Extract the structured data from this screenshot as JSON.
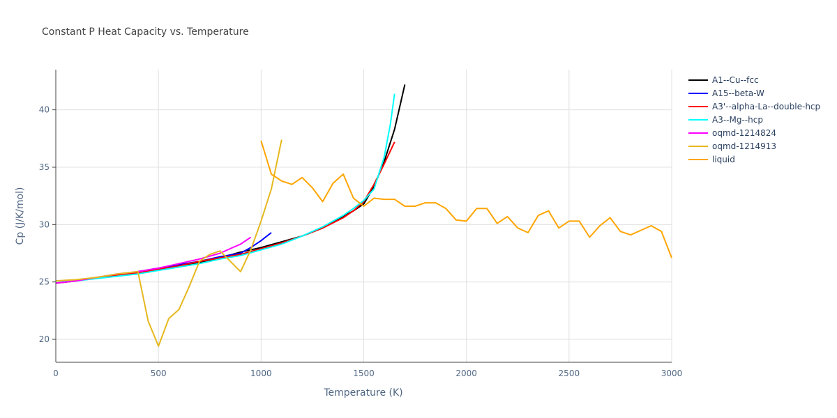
{
  "chart_data": {
    "type": "line",
    "title": "Constant P Heat Capacity vs. Temperature",
    "xlabel": "Temperature (K)",
    "ylabel": "Cp (J/K/mol)",
    "xlim": [
      0,
      3000
    ],
    "ylim": [
      18,
      43.5
    ],
    "x_ticks": [
      0,
      500,
      1000,
      1500,
      2000,
      2500,
      3000
    ],
    "x_tick_labels": [
      "0",
      "500",
      "1000",
      "1500",
      "2000",
      "2500",
      "3000"
    ],
    "y_ticks": [
      20,
      25,
      30,
      35,
      40
    ],
    "y_tick_labels": [
      "20",
      "25",
      "30",
      "35",
      "40"
    ],
    "grid": true,
    "legend_position": "top-right",
    "series": [
      {
        "name": "A1--Cu--fcc",
        "color": "#000000",
        "points": [
          [
            0,
            24.9
          ],
          [
            100,
            25.1
          ],
          [
            200,
            25.4
          ],
          [
            300,
            25.6
          ],
          [
            400,
            25.9
          ],
          [
            500,
            26.1
          ],
          [
            600,
            26.4
          ],
          [
            700,
            26.7
          ],
          [
            800,
            27.1
          ],
          [
            900,
            27.6
          ],
          [
            1000,
            28.0
          ],
          [
            1100,
            28.5
          ],
          [
            1200,
            29.0
          ],
          [
            1300,
            29.7
          ],
          [
            1400,
            30.7
          ],
          [
            1450,
            31.2
          ],
          [
            1500,
            31.8
          ],
          [
            1550,
            33.3
          ],
          [
            1600,
            35.5
          ],
          [
            1650,
            38.3
          ],
          [
            1700,
            42.2
          ]
        ]
      },
      {
        "name": "A15--beta-W",
        "color": "#0000ff",
        "points": [
          [
            0,
            24.9
          ],
          [
            100,
            25.1
          ],
          [
            200,
            25.4
          ],
          [
            300,
            25.6
          ],
          [
            400,
            25.9
          ],
          [
            500,
            26.2
          ],
          [
            600,
            26.5
          ],
          [
            700,
            26.8
          ],
          [
            800,
            27.2
          ],
          [
            900,
            27.5
          ],
          [
            950,
            28.0
          ],
          [
            1000,
            28.6
          ],
          [
            1050,
            29.3
          ]
        ]
      },
      {
        "name": "A3'--alpha-La--double-hcp",
        "color": "#ff0000",
        "points": [
          [
            0,
            24.9
          ],
          [
            100,
            25.1
          ],
          [
            200,
            25.4
          ],
          [
            300,
            25.6
          ],
          [
            400,
            25.8
          ],
          [
            500,
            26.1
          ],
          [
            600,
            26.4
          ],
          [
            700,
            26.8
          ],
          [
            800,
            27.1
          ],
          [
            900,
            27.4
          ],
          [
            1000,
            27.9
          ],
          [
            1100,
            28.4
          ],
          [
            1200,
            29.0
          ],
          [
            1300,
            29.7
          ],
          [
            1400,
            30.6
          ],
          [
            1450,
            31.2
          ],
          [
            1500,
            32.0
          ],
          [
            1550,
            33.5
          ],
          [
            1600,
            35.3
          ],
          [
            1650,
            37.2
          ]
        ]
      },
      {
        "name": "A3--Mg--hcp",
        "color": "#00ffff",
        "points": [
          [
            0,
            25.1
          ],
          [
            100,
            25.1
          ],
          [
            200,
            25.3
          ],
          [
            300,
            25.5
          ],
          [
            400,
            25.7
          ],
          [
            500,
            26.0
          ],
          [
            600,
            26.3
          ],
          [
            700,
            26.6
          ],
          [
            800,
            27.0
          ],
          [
            900,
            27.3
          ],
          [
            1000,
            27.8
          ],
          [
            1100,
            28.3
          ],
          [
            1200,
            29.0
          ],
          [
            1300,
            29.8
          ],
          [
            1400,
            30.8
          ],
          [
            1450,
            31.4
          ],
          [
            1500,
            32.1
          ],
          [
            1550,
            33.1
          ],
          [
            1600,
            35.9
          ],
          [
            1630,
            38.8
          ],
          [
            1650,
            41.4
          ]
        ]
      },
      {
        "name": "oqmd-1214824",
        "color": "#ff00ff",
        "points": [
          [
            0,
            24.9
          ],
          [
            100,
            25.1
          ],
          [
            200,
            25.4
          ],
          [
            300,
            25.7
          ],
          [
            400,
            25.9
          ],
          [
            500,
            26.2
          ],
          [
            600,
            26.6
          ],
          [
            700,
            27.0
          ],
          [
            800,
            27.5
          ],
          [
            850,
            27.9
          ],
          [
            900,
            28.3
          ],
          [
            950,
            28.9
          ]
        ]
      },
      {
        "name": "oqmd-1214913",
        "color": "#e6b81e",
        "points": [
          [
            0,
            25.1
          ],
          [
            100,
            25.2
          ],
          [
            200,
            25.4
          ],
          [
            300,
            25.7
          ],
          [
            350,
            25.8
          ],
          [
            400,
            25.9
          ],
          [
            450,
            21.6
          ],
          [
            500,
            19.4
          ],
          [
            550,
            21.8
          ],
          [
            600,
            22.6
          ],
          [
            650,
            24.6
          ],
          [
            700,
            26.8
          ],
          [
            750,
            27.4
          ],
          [
            800,
            27.7
          ],
          [
            850,
            26.8
          ],
          [
            900,
            25.9
          ],
          [
            950,
            27.8
          ],
          [
            1000,
            30.3
          ],
          [
            1050,
            33.1
          ],
          [
            1100,
            37.4
          ]
        ]
      },
      {
        "name": "liquid",
        "color": "#ffa500",
        "points": [
          [
            1000,
            37.3
          ],
          [
            1050,
            34.4
          ],
          [
            1100,
            33.8
          ],
          [
            1150,
            33.5
          ],
          [
            1200,
            34.1
          ],
          [
            1250,
            33.2
          ],
          [
            1300,
            32.0
          ],
          [
            1350,
            33.6
          ],
          [
            1400,
            34.4
          ],
          [
            1450,
            32.3
          ],
          [
            1500,
            31.6
          ],
          [
            1550,
            32.3
          ],
          [
            1600,
            32.2
          ],
          [
            1650,
            32.2
          ],
          [
            1700,
            31.6
          ],
          [
            1750,
            31.6
          ],
          [
            1800,
            31.9
          ],
          [
            1850,
            31.9
          ],
          [
            1900,
            31.4
          ],
          [
            1950,
            30.4
          ],
          [
            2000,
            30.3
          ],
          [
            2050,
            31.4
          ],
          [
            2100,
            31.4
          ],
          [
            2150,
            30.1
          ],
          [
            2200,
            30.7
          ],
          [
            2250,
            29.7
          ],
          [
            2300,
            29.3
          ],
          [
            2350,
            30.8
          ],
          [
            2400,
            31.2
          ],
          [
            2450,
            29.7
          ],
          [
            2500,
            30.3
          ],
          [
            2550,
            30.3
          ],
          [
            2600,
            28.9
          ],
          [
            2650,
            29.9
          ],
          [
            2700,
            30.6
          ],
          [
            2750,
            29.4
          ],
          [
            2800,
            29.1
          ],
          [
            2850,
            29.5
          ],
          [
            2900,
            29.9
          ],
          [
            2950,
            29.4
          ],
          [
            3000,
            27.1
          ]
        ]
      }
    ]
  }
}
